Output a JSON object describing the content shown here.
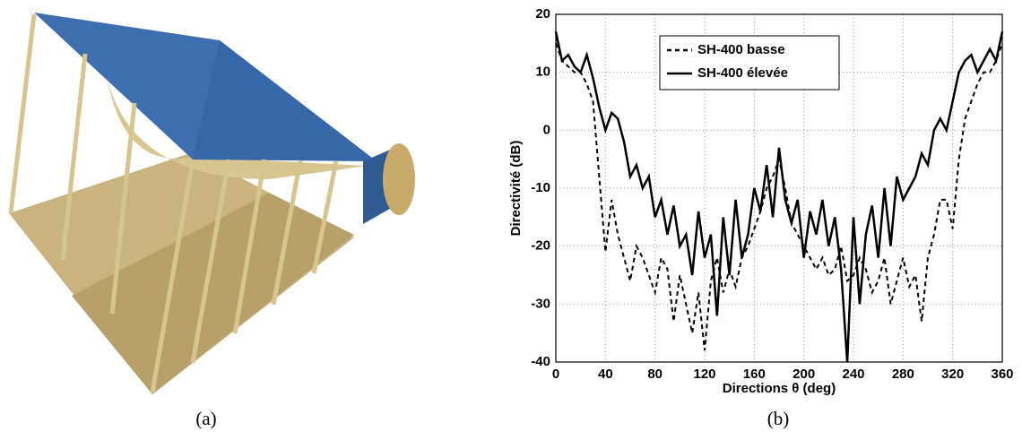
{
  "panel_labels": [
    "(a)",
    "(b)"
  ],
  "chart_data": {
    "type": "line",
    "xlabel": "Directions θ (deg)",
    "ylabel": "Directivité (dB)",
    "x": [
      0,
      5,
      10,
      15,
      20,
      25,
      30,
      35,
      40,
      45,
      50,
      55,
      60,
      65,
      70,
      75,
      80,
      85,
      90,
      95,
      100,
      105,
      110,
      115,
      120,
      125,
      130,
      135,
      140,
      145,
      150,
      155,
      160,
      165,
      170,
      175,
      180,
      185,
      190,
      195,
      200,
      205,
      210,
      215,
      220,
      225,
      230,
      235,
      240,
      245,
      250,
      255,
      260,
      265,
      270,
      275,
      280,
      285,
      290,
      295,
      300,
      305,
      310,
      315,
      320,
      325,
      330,
      335,
      340,
      345,
      350,
      355,
      360
    ],
    "series": [
      {
        "name": "SH-400 basse",
        "color": "#000000",
        "style": "dashed",
        "values": [
          15,
          12,
          11,
          10,
          10,
          8,
          5,
          -8,
          -21,
          -12,
          -18,
          -22,
          -26,
          -20,
          -22,
          -25,
          -28,
          -22,
          -24,
          -33,
          -25,
          -30,
          -35,
          -28,
          -38,
          -26,
          -22,
          -28,
          -24,
          -27,
          -22,
          -20,
          -17,
          -14,
          -10,
          -8,
          -5,
          -10,
          -16,
          -18,
          -20,
          -22,
          -24,
          -22,
          -25,
          -24,
          -20,
          -26,
          -25,
          -22,
          -24,
          -28,
          -26,
          -22,
          -30,
          -26,
          -22,
          -27,
          -25,
          -33,
          -22,
          -18,
          -12,
          -12,
          -17,
          -5,
          2,
          5,
          8,
          10,
          10,
          12,
          15
        ]
      },
      {
        "name": "SH-400 élevée",
        "color": "#000000",
        "style": "solid",
        "values": [
          17,
          12,
          13,
          11,
          10,
          13,
          9,
          4,
          0,
          3,
          2,
          -2,
          -8,
          -6,
          -10,
          -8,
          -15,
          -12,
          -18,
          -13,
          -20,
          -18,
          -25,
          -14,
          -22,
          -18,
          -32,
          -15,
          -25,
          -12,
          -22,
          -18,
          -10,
          -14,
          -6,
          -15,
          -3,
          -12,
          -16,
          -12,
          -22,
          -14,
          -18,
          -12,
          -20,
          -15,
          -24,
          -40,
          -15,
          -30,
          -18,
          -13,
          -22,
          -10,
          -20,
          -8,
          -12,
          -10,
          -8,
          -4,
          -6,
          0,
          2,
          0,
          5,
          10,
          12,
          13,
          10,
          12,
          14,
          12,
          17
        ]
      }
    ],
    "xlim": [
      0,
      360
    ],
    "xticks": [
      0,
      40,
      80,
      120,
      160,
      200,
      240,
      280,
      320,
      360
    ],
    "ylim": [
      -40,
      20
    ],
    "yticks": [
      -40,
      -30,
      -20,
      -10,
      0,
      10,
      20
    ],
    "grid": true,
    "legend": "top"
  }
}
